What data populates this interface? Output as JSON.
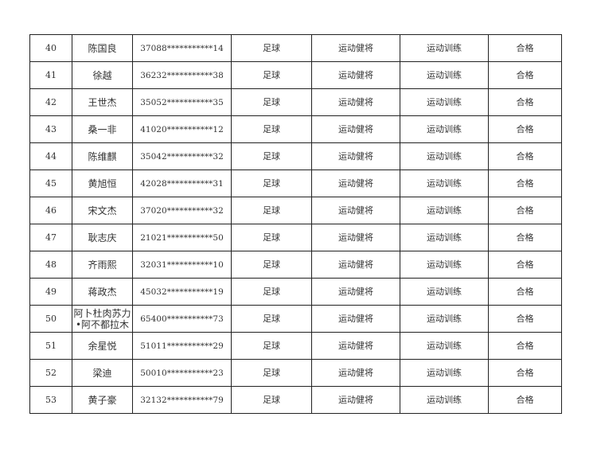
{
  "rows": [
    {
      "no": "40",
      "name": "陈国良",
      "id": "37088***********14",
      "sport": "足球",
      "level": "运动健将",
      "type": "运动训练",
      "result": "合格"
    },
    {
      "no": "41",
      "name": "徐越",
      "id": "36232***********38",
      "sport": "足球",
      "level": "运动健将",
      "type": "运动训练",
      "result": "合格"
    },
    {
      "no": "42",
      "name": "王世杰",
      "id": "35052***********35",
      "sport": "足球",
      "level": "运动健将",
      "type": "运动训练",
      "result": "合格"
    },
    {
      "no": "43",
      "name": "桑一非",
      "id": "41020***********12",
      "sport": "足球",
      "level": "运动健将",
      "type": "运动训练",
      "result": "合格"
    },
    {
      "no": "44",
      "name": "陈维麒",
      "id": "35042***********32",
      "sport": "足球",
      "level": "运动健将",
      "type": "运动训练",
      "result": "合格"
    },
    {
      "no": "45",
      "name": "黄旭恒",
      "id": "42028***********31",
      "sport": "足球",
      "level": "运动健将",
      "type": "运动训练",
      "result": "合格"
    },
    {
      "no": "46",
      "name": "宋文杰",
      "id": "37020***********32",
      "sport": "足球",
      "level": "运动健将",
      "type": "运动训练",
      "result": "合格"
    },
    {
      "no": "47",
      "name": "耿志庆",
      "id": "21021***********50",
      "sport": "足球",
      "level": "运动健将",
      "type": "运动训练",
      "result": "合格"
    },
    {
      "no": "48",
      "name": "齐雨熙",
      "id": "32031***********10",
      "sport": "足球",
      "level": "运动健将",
      "type": "运动训练",
      "result": "合格"
    },
    {
      "no": "49",
      "name": "蒋政杰",
      "id": "45032***********19",
      "sport": "足球",
      "level": "运动健将",
      "type": "运动训练",
      "result": "合格"
    },
    {
      "no": "50",
      "name": "阿卜杜肉苏力•阿不都拉木",
      "id": "65400***********73",
      "sport": "足球",
      "level": "运动健将",
      "type": "运动训练",
      "result": "合格"
    },
    {
      "no": "51",
      "name": "余星悦",
      "id": "51011***********29",
      "sport": "足球",
      "level": "运动健将",
      "type": "运动训练",
      "result": "合格"
    },
    {
      "no": "52",
      "name": "梁迪",
      "id": "50010***********23",
      "sport": "足球",
      "level": "运动健将",
      "type": "运动训练",
      "result": "合格"
    },
    {
      "no": "53",
      "name": "黄子豪",
      "id": "32132***********79",
      "sport": "足球",
      "level": "运动健将",
      "type": "运动训练",
      "result": "合格"
    }
  ]
}
